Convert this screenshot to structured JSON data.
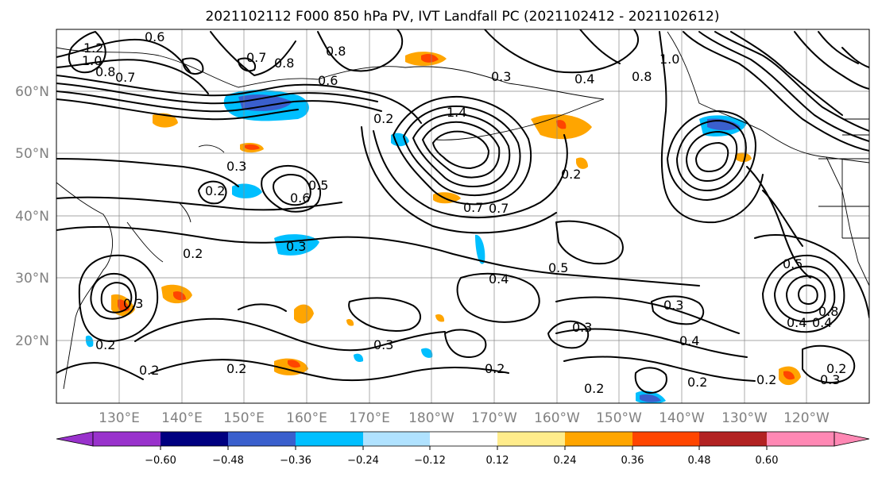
{
  "title": "2021102112 F000 850 hPa PV, IVT Landfall PC (2021102412 - 2021102612)",
  "lat_labels": [
    "60°N",
    "50°N",
    "40°N",
    "30°N",
    "20°N"
  ],
  "lon_labels": [
    "130°E",
    "140°E",
    "150°E",
    "160°E",
    "170°E",
    "180°W",
    "170°W",
    "160°W",
    "150°W",
    "140°W",
    "130°W",
    "120°W"
  ],
  "contour_labels": [
    "1.2",
    "1.0",
    "0.8",
    "0.7",
    "0.6",
    "0.7",
    "0.8",
    "0.3",
    "0.8",
    "1.0",
    "0.8",
    "0.7",
    "0.6",
    "0.2",
    "1.4",
    "0.3",
    "0.2",
    "0.3",
    "0.4",
    "0.5",
    "0.6",
    "0.7",
    "0.2",
    "0.4",
    "0.5",
    "0.2",
    "0.3",
    "0.3",
    "0.4",
    "0.3",
    "0.2",
    "0.2",
    "0.2",
    "0.2",
    "0.2",
    "0.3",
    "0.4",
    "0.2",
    "0.3",
    "0.2",
    "0.4",
    "0.8",
    "0.2",
    "0.5"
  ],
  "colorbar": {
    "colors": [
      "#9932cc",
      "#000080",
      "#3a5fcd",
      "#00bfff",
      "#b0e2ff",
      "#ffffff",
      "#ffec8b",
      "#ffa500",
      "#ff4500",
      "#b22222",
      "#ff88b4"
    ],
    "ticks": [
      "−0.60",
      "−0.48",
      "−0.36",
      "−0.24",
      "−0.12",
      "0.12",
      "0.24",
      "0.36",
      "0.48",
      "0.60"
    ]
  }
}
